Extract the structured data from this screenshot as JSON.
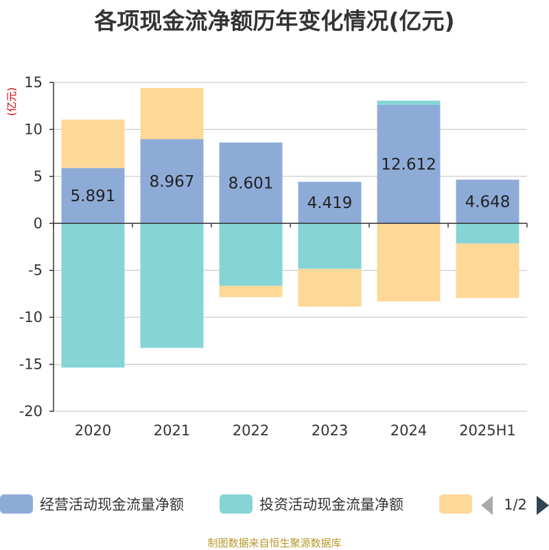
{
  "title": "各项现金流净额历年变化情况(亿元)",
  "source": "制图数据来自恒生聚源数据库",
  "chart_data": {
    "type": "bar",
    "stacked": true,
    "title": "各项现金流净额历年变化情况(亿元)",
    "ylabel": "(亿元)",
    "ylim": [
      -20,
      15
    ],
    "yticks": [
      15,
      10,
      5,
      0,
      -5,
      -10,
      -15,
      -20
    ],
    "grid": true,
    "categories": [
      "2020",
      "2021",
      "2022",
      "2023",
      "2024",
      "2025H1"
    ],
    "series": [
      {
        "name": "经营活动现金流量净额",
        "color": "#8eabd8",
        "values": [
          5.891,
          8.967,
          8.601,
          4.419,
          12.612,
          4.648
        ],
        "labels": [
          "5.891",
          "8.967",
          "8.601",
          "4.419",
          "12.612",
          "4.648"
        ]
      },
      {
        "name": "投资活动现金流量净额",
        "color": "#86d4d6",
        "values": [
          -15.35,
          -13.25,
          -6.65,
          -4.85,
          0.45,
          -2.15
        ]
      },
      {
        "name": "",
        "color": "#fdd897",
        "values": [
          5.15,
          5.45,
          -1.2,
          -4.0,
          -8.3,
          -5.8
        ]
      }
    ],
    "legend": {
      "position": "bottom",
      "page": "1/2"
    }
  }
}
